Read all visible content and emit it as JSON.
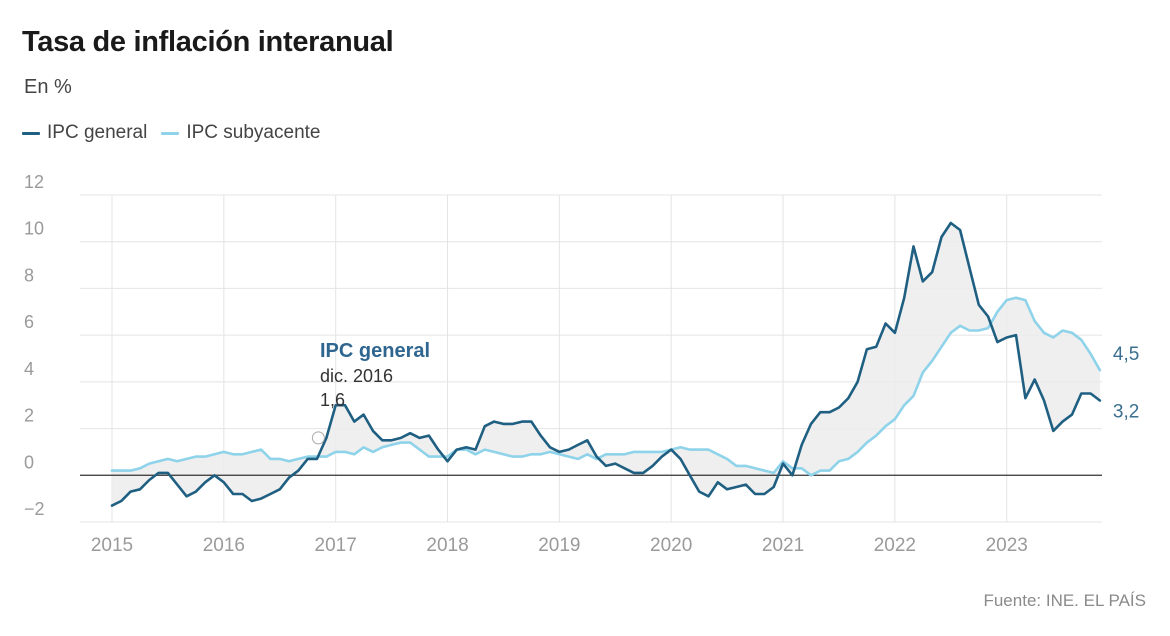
{
  "title": "Tasa de inflación interanual",
  "subtitle": "En %",
  "legend": [
    {
      "label": "IPC general",
      "color": "#1f5f82"
    },
    {
      "label": "IPC subyacente",
      "color": "#8fd3ea"
    }
  ],
  "source": "Fuente: INE. EL PAÍS",
  "annotation": {
    "title": "IPC general",
    "date": "dic. 2016",
    "value": "1,6"
  },
  "end_labels": {
    "subyacente": "4,5",
    "general": "3,2"
  },
  "chart_data": {
    "type": "line",
    "title": "Tasa de inflación interanual",
    "ylabel": "En %",
    "xlabel": "",
    "ylim": [
      -2,
      12
    ],
    "yticks": [
      "12",
      "10",
      "8",
      "6",
      "4",
      "2",
      "0",
      "−2"
    ],
    "yticks_values": [
      12,
      10,
      8,
      6,
      4,
      2,
      0,
      -2
    ],
    "xticks": [
      "2015",
      "2016",
      "2017",
      "2018",
      "2019",
      "2020",
      "2021",
      "2022",
      "2023"
    ],
    "grid": true,
    "legend_position": "top-left",
    "x_start": "2015-01",
    "x_end": "2023-11",
    "series": [
      {
        "name": "IPC general",
        "color": "#1f5f82",
        "values": [
          -1.3,
          -1.1,
          -0.7,
          -0.6,
          -0.2,
          0.1,
          0.1,
          -0.4,
          -0.9,
          -0.7,
          -0.3,
          0.0,
          -0.3,
          -0.8,
          -0.8,
          -1.1,
          -1.0,
          -0.8,
          -0.6,
          -0.1,
          0.2,
          0.7,
          0.7,
          1.6,
          3.0,
          3.0,
          2.3,
          2.6,
          1.9,
          1.5,
          1.5,
          1.6,
          1.8,
          1.6,
          1.7,
          1.1,
          0.6,
          1.1,
          1.2,
          1.1,
          2.1,
          2.3,
          2.2,
          2.2,
          2.3,
          2.3,
          1.7,
          1.2,
          1.0,
          1.1,
          1.3,
          1.5,
          0.8,
          0.4,
          0.5,
          0.3,
          0.1,
          0.1,
          0.4,
          0.8,
          1.1,
          0.7,
          0.0,
          -0.7,
          -0.9,
          -0.3,
          -0.6,
          -0.5,
          -0.4,
          -0.8,
          -0.8,
          -0.5,
          0.5,
          0.0,
          1.3,
          2.2,
          2.7,
          2.7,
          2.9,
          3.3,
          4.0,
          5.4,
          5.5,
          6.5,
          6.1,
          7.6,
          9.8,
          8.3,
          8.7,
          10.2,
          10.8,
          10.5,
          8.9,
          7.3,
          6.8,
          5.7,
          5.9,
          6.0,
          3.3,
          4.1,
          3.2,
          1.9,
          2.3,
          2.6,
          3.5,
          3.5,
          3.2
        ]
      },
      {
        "name": "IPC subyacente",
        "color": "#8fd3ea",
        "values": [
          0.2,
          0.2,
          0.2,
          0.3,
          0.5,
          0.6,
          0.7,
          0.6,
          0.7,
          0.8,
          0.8,
          0.9,
          1.0,
          0.9,
          0.9,
          1.0,
          1.1,
          0.7,
          0.7,
          0.6,
          0.7,
          0.8,
          0.8,
          0.8,
          1.0,
          1.0,
          0.9,
          1.2,
          1.0,
          1.2,
          1.3,
          1.4,
          1.4,
          1.1,
          0.8,
          0.8,
          0.8,
          1.1,
          1.1,
          0.9,
          1.1,
          1.0,
          0.9,
          0.8,
          0.8,
          0.9,
          0.9,
          1.0,
          0.9,
          0.8,
          0.7,
          0.9,
          0.7,
          0.9,
          0.9,
          0.9,
          1.0,
          1.0,
          1.0,
          1.0,
          1.1,
          1.2,
          1.1,
          1.1,
          1.1,
          0.9,
          0.7,
          0.4,
          0.4,
          0.3,
          0.2,
          0.1,
          0.6,
          0.3,
          0.3,
          0.0,
          0.2,
          0.2,
          0.6,
          0.7,
          1.0,
          1.4,
          1.7,
          2.1,
          2.4,
          3.0,
          3.4,
          4.4,
          4.9,
          5.5,
          6.1,
          6.4,
          6.2,
          6.2,
          6.3,
          7.0,
          7.5,
          7.6,
          7.5,
          6.6,
          6.1,
          5.9,
          6.2,
          6.1,
          5.8,
          5.2,
          4.5
        ]
      }
    ]
  }
}
